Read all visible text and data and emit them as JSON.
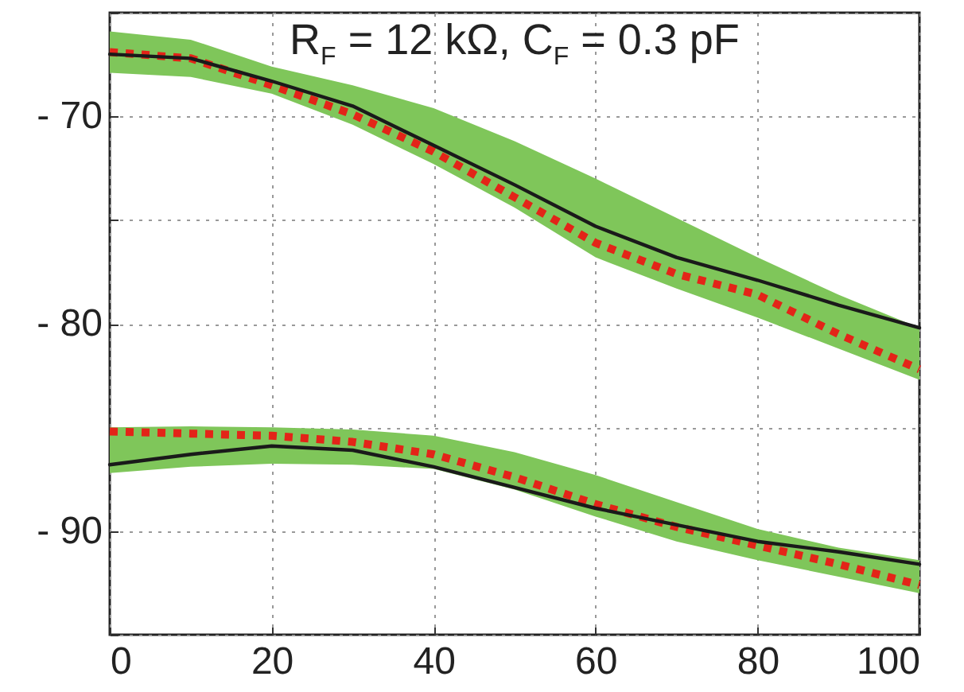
{
  "chart_data": {
    "type": "line",
    "title": "R$_{F}$ = 12 kΩ, C$_{F}$ = 0.3 pF",
    "x": [
      0,
      10,
      20,
      30,
      40,
      50,
      60,
      70,
      80,
      90,
      100
    ],
    "xlim": [
      0,
      100
    ],
    "xticks": [
      0,
      20,
      40,
      60,
      80,
      100
    ],
    "ylim": [
      -95,
      -65
    ],
    "yticks": [
      {
        "value": -95,
        "label": null
      },
      {
        "value": -90,
        "label": "- 90"
      },
      {
        "value": -85,
        "label": null
      },
      {
        "value": -80,
        "label": "- 80"
      },
      {
        "value": -75,
        "label": null
      },
      {
        "value": -70,
        "label": "- 70"
      },
      {
        "value": -65,
        "label": null
      }
    ],
    "grid": true,
    "series": [
      {
        "color": "#e32418",
        "line_style": "dotted",
        "values": [
          -66.9,
          -67.2,
          -68.5,
          -69.9,
          -71.7,
          -73.9,
          -76.1,
          -77.6,
          -78.6,
          -80.5,
          -82.2
        ],
        "lower": [
          -67.9,
          -68.1,
          -68.9,
          -70.4,
          -72.3,
          -74.4,
          -76.8,
          -78.3,
          -79.7,
          -81.2,
          -82.7
        ],
        "upper": [
          -65.9,
          -66.3,
          -67.6,
          -68.5,
          -69.6,
          -71.2,
          -73.0,
          -74.9,
          -76.8,
          -78.6,
          -80.2
        ]
      },
      {
        "color": "#1a1a1a",
        "line_style": "solid",
        "values": [
          -67.0,
          -67.2,
          -68.3,
          -69.5,
          -71.4,
          -73.3,
          -75.3,
          -76.8,
          -77.9,
          -79.1,
          -80.2
        ]
      },
      {
        "color": "#e32418",
        "line_style": "dotted",
        "values": [
          -85.2,
          -85.3,
          -85.4,
          -85.7,
          -86.3,
          -87.4,
          -88.7,
          -89.8,
          -90.7,
          -91.6,
          -92.6
        ],
        "lower": [
          -87.2,
          -86.9,
          -86.75,
          -86.8,
          -87.0,
          -88.0,
          -89.3,
          -90.5,
          -91.4,
          -92.2,
          -93.0
        ],
        "upper": [
          -85.0,
          -84.95,
          -85.0,
          -85.1,
          -85.4,
          -86.2,
          -87.3,
          -88.6,
          -89.9,
          -90.8,
          -91.4
        ]
      },
      {
        "color": "#1a1a1a",
        "line_style": "solid",
        "values": [
          -86.8,
          -86.3,
          -85.9,
          -86.1,
          -86.9,
          -87.9,
          -88.9,
          -89.7,
          -90.5,
          -91.0,
          -91.6
        ]
      }
    ]
  }
}
